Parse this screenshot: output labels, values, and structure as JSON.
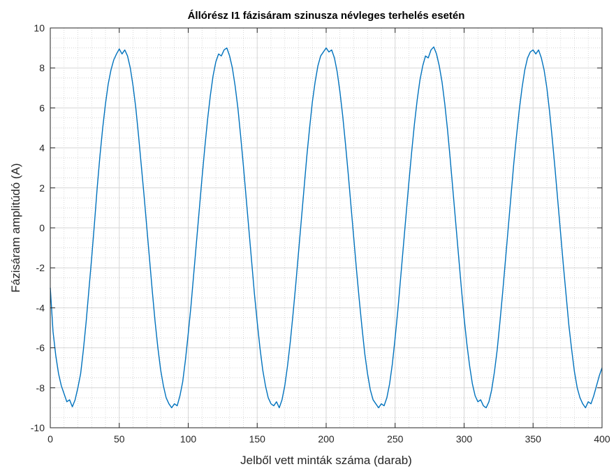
{
  "chart_data": {
    "type": "line",
    "title": "Állórész I1 fázisáram szinusza névleges terhelés esetén",
    "xlabel": "Jelből vett minták száma (darab)",
    "ylabel": "Fázisáram amplitúdó (A)",
    "xlim": [
      0,
      400
    ],
    "ylim": [
      -10,
      10
    ],
    "xticks": [
      "0",
      "50",
      "100",
      "150",
      "200",
      "250",
      "300",
      "350",
      "400"
    ],
    "yticks": [
      "-10",
      "-8",
      "-6",
      "-4",
      "-2",
      "0",
      "2",
      "4",
      "6",
      "8",
      "10"
    ],
    "grid": true,
    "minor_grid": true,
    "series": [
      {
        "color": "#0072BD",
        "points": [
          [
            0,
            -3.0
          ],
          [
            2,
            -5.2
          ],
          [
            4,
            -6.4
          ],
          [
            6,
            -7.3
          ],
          [
            8,
            -7.9
          ],
          [
            10,
            -8.3
          ],
          [
            12,
            -8.7
          ],
          [
            14,
            -8.6
          ],
          [
            16,
            -8.95
          ],
          [
            18,
            -8.6
          ],
          [
            20,
            -8.0
          ],
          [
            22,
            -7.3
          ],
          [
            24,
            -6.1
          ],
          [
            26,
            -4.7
          ],
          [
            28,
            -3.1
          ],
          [
            30,
            -1.5
          ],
          [
            32,
            0.2
          ],
          [
            34,
            2.0
          ],
          [
            36,
            3.6
          ],
          [
            38,
            5.0
          ],
          [
            40,
            6.2
          ],
          [
            42,
            7.2
          ],
          [
            44,
            7.9
          ],
          [
            46,
            8.4
          ],
          [
            48,
            8.7
          ],
          [
            50,
            8.95
          ],
          [
            52,
            8.7
          ],
          [
            54,
            8.9
          ],
          [
            56,
            8.6
          ],
          [
            58,
            8.0
          ],
          [
            60,
            7.1
          ],
          [
            62,
            6.0
          ],
          [
            64,
            4.6
          ],
          [
            66,
            3.1
          ],
          [
            68,
            1.6
          ],
          [
            70,
            0.0
          ],
          [
            72,
            -1.6
          ],
          [
            74,
            -3.2
          ],
          [
            76,
            -4.7
          ],
          [
            78,
            -6.0
          ],
          [
            80,
            -7.1
          ],
          [
            82,
            -7.9
          ],
          [
            84,
            -8.5
          ],
          [
            86,
            -8.8
          ],
          [
            88,
            -9.0
          ],
          [
            90,
            -8.8
          ],
          [
            92,
            -8.9
          ],
          [
            94,
            -8.4
          ],
          [
            96,
            -7.7
          ],
          [
            98,
            -6.6
          ],
          [
            100,
            -5.3
          ],
          [
            102,
            -3.9
          ],
          [
            104,
            -2.3
          ],
          [
            106,
            -0.7
          ],
          [
            108,
            0.9
          ],
          [
            110,
            2.5
          ],
          [
            112,
            4.0
          ],
          [
            114,
            5.4
          ],
          [
            116,
            6.6
          ],
          [
            118,
            7.6
          ],
          [
            120,
            8.3
          ],
          [
            122,
            8.7
          ],
          [
            124,
            8.6
          ],
          [
            126,
            8.9
          ],
          [
            128,
            9.0
          ],
          [
            130,
            8.6
          ],
          [
            132,
            8.0
          ],
          [
            134,
            7.1
          ],
          [
            136,
            6.0
          ],
          [
            138,
            4.6
          ],
          [
            140,
            3.1
          ],
          [
            142,
            1.5
          ],
          [
            144,
            -0.1
          ],
          [
            146,
            -1.7
          ],
          [
            148,
            -3.3
          ],
          [
            150,
            -4.7
          ],
          [
            152,
            -6.0
          ],
          [
            154,
            -7.1
          ],
          [
            156,
            -7.9
          ],
          [
            158,
            -8.5
          ],
          [
            160,
            -8.8
          ],
          [
            162,
            -8.9
          ],
          [
            164,
            -8.7
          ],
          [
            166,
            -9.0
          ],
          [
            168,
            -8.6
          ],
          [
            170,
            -7.9
          ],
          [
            172,
            -6.9
          ],
          [
            174,
            -5.7
          ],
          [
            176,
            -4.3
          ],
          [
            178,
            -2.8
          ],
          [
            180,
            -1.2
          ],
          [
            182,
            0.4
          ],
          [
            184,
            2.0
          ],
          [
            186,
            3.6
          ],
          [
            188,
            5.0
          ],
          [
            190,
            6.3
          ],
          [
            192,
            7.3
          ],
          [
            194,
            8.1
          ],
          [
            196,
            8.6
          ],
          [
            198,
            8.8
          ],
          [
            200,
            9.0
          ],
          [
            202,
            8.8
          ],
          [
            204,
            8.9
          ],
          [
            206,
            8.5
          ],
          [
            208,
            7.8
          ],
          [
            210,
            6.8
          ],
          [
            212,
            5.6
          ],
          [
            214,
            4.2
          ],
          [
            216,
            2.7
          ],
          [
            218,
            1.1
          ],
          [
            220,
            -0.5
          ],
          [
            222,
            -2.1
          ],
          [
            224,
            -3.6
          ],
          [
            226,
            -5.0
          ],
          [
            228,
            -6.3
          ],
          [
            230,
            -7.3
          ],
          [
            232,
            -8.1
          ],
          [
            234,
            -8.6
          ],
          [
            236,
            -8.8
          ],
          [
            238,
            -9.0
          ],
          [
            240,
            -8.8
          ],
          [
            242,
            -8.9
          ],
          [
            244,
            -8.5
          ],
          [
            246,
            -7.8
          ],
          [
            248,
            -6.8
          ],
          [
            250,
            -5.5
          ],
          [
            252,
            -4.1
          ],
          [
            254,
            -2.5
          ],
          [
            256,
            -0.9
          ],
          [
            258,
            0.7
          ],
          [
            260,
            2.3
          ],
          [
            262,
            3.8
          ],
          [
            264,
            5.2
          ],
          [
            266,
            6.4
          ],
          [
            268,
            7.4
          ],
          [
            270,
            8.1
          ],
          [
            272,
            8.6
          ],
          [
            274,
            8.5
          ],
          [
            276,
            8.9
          ],
          [
            278,
            9.05
          ],
          [
            280,
            8.7
          ],
          [
            282,
            8.1
          ],
          [
            284,
            7.3
          ],
          [
            286,
            6.2
          ],
          [
            288,
            4.9
          ],
          [
            290,
            3.4
          ],
          [
            292,
            1.8
          ],
          [
            294,
            0.2
          ],
          [
            296,
            -1.4
          ],
          [
            298,
            -3.0
          ],
          [
            300,
            -4.5
          ],
          [
            302,
            -5.8
          ],
          [
            304,
            -6.9
          ],
          [
            306,
            -7.8
          ],
          [
            308,
            -8.4
          ],
          [
            310,
            -8.7
          ],
          [
            312,
            -8.6
          ],
          [
            314,
            -8.9
          ],
          [
            316,
            -9.0
          ],
          [
            318,
            -8.7
          ],
          [
            320,
            -8.1
          ],
          [
            322,
            -7.2
          ],
          [
            324,
            -6.1
          ],
          [
            326,
            -4.7
          ],
          [
            328,
            -3.2
          ],
          [
            330,
            -1.6
          ],
          [
            332,
            0.0
          ],
          [
            334,
            1.6
          ],
          [
            336,
            3.2
          ],
          [
            338,
            4.6
          ],
          [
            340,
            5.9
          ],
          [
            342,
            7.0
          ],
          [
            344,
            7.9
          ],
          [
            346,
            8.5
          ],
          [
            348,
            8.8
          ],
          [
            350,
            8.9
          ],
          [
            352,
            8.7
          ],
          [
            354,
            8.9
          ],
          [
            356,
            8.5
          ],
          [
            358,
            7.9
          ],
          [
            360,
            7.0
          ],
          [
            362,
            5.8
          ],
          [
            364,
            4.4
          ],
          [
            366,
            2.9
          ],
          [
            368,
            1.3
          ],
          [
            370,
            -0.3
          ],
          [
            372,
            -1.9
          ],
          [
            374,
            -3.4
          ],
          [
            376,
            -4.9
          ],
          [
            378,
            -6.1
          ],
          [
            380,
            -7.2
          ],
          [
            382,
            -8.0
          ],
          [
            384,
            -8.5
          ],
          [
            386,
            -8.8
          ],
          [
            388,
            -9.0
          ],
          [
            390,
            -8.7
          ],
          [
            392,
            -8.8
          ],
          [
            394,
            -8.4
          ],
          [
            396,
            -7.9
          ],
          [
            398,
            -7.4
          ],
          [
            400,
            -7.0
          ]
        ]
      }
    ]
  }
}
